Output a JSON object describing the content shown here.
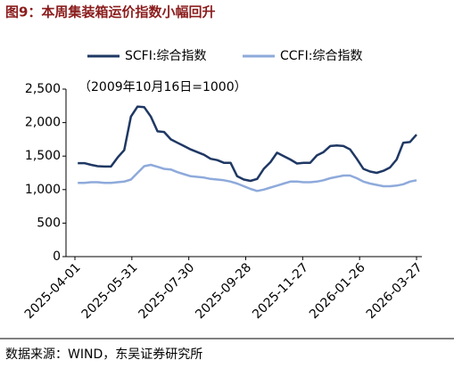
{
  "chart_data": {
    "type": "line",
    "title": "图9：本周集装箱运价指数小幅回升",
    "annotation": "（2009年10月16日=1000）",
    "source": "数据来源：WIND，东吴证券研究所",
    "x": [
      "2025-04-04",
      "2025-04-11",
      "2025-04-18",
      "2025-04-25",
      "2025-05-02",
      "2025-05-09",
      "2025-05-16",
      "2025-05-23",
      "2025-05-30",
      "2025-06-06",
      "2025-06-13",
      "2025-06-20",
      "2025-06-27",
      "2025-07-04",
      "2025-07-11",
      "2025-07-18",
      "2025-07-25",
      "2025-08-01",
      "2025-08-08",
      "2025-08-15",
      "2025-08-22",
      "2025-08-29",
      "2025-09-05",
      "2025-09-12",
      "2025-09-19",
      "2025-09-26",
      "2025-10-03",
      "2025-10-10",
      "2025-10-17",
      "2025-10-24",
      "2025-10-31",
      "2025-11-07",
      "2025-11-14",
      "2025-11-21",
      "2025-11-28",
      "2025-12-05",
      "2025-12-12",
      "2025-12-19",
      "2025-12-26",
      "2026-01-02",
      "2026-01-09",
      "2026-01-16",
      "2026-01-23",
      "2026-01-30",
      "2026-02-06",
      "2026-02-13",
      "2026-02-20",
      "2026-02-27",
      "2026-03-06",
      "2026-03-13",
      "2026-03-20",
      "2026-03-27"
    ],
    "series": [
      {
        "name": "SCFI:综合指数",
        "color": "#1f3864",
        "values": [
          1395,
          1395,
          1370,
          1350,
          1345,
          1345,
          1480,
          1590,
          2090,
          2240,
          2230,
          2090,
          1870,
          1860,
          1750,
          1700,
          1650,
          1600,
          1560,
          1520,
          1460,
          1440,
          1400,
          1400,
          1200,
          1150,
          1130,
          1160,
          1310,
          1410,
          1550,
          1500,
          1450,
          1390,
          1400,
          1400,
          1510,
          1560,
          1650,
          1660,
          1650,
          1600,
          1460,
          1310,
          1270,
          1250,
          1280,
          1330,
          1450,
          1700,
          1710,
          1820
        ]
      },
      {
        "name": "CCFI:综合指数",
        "color": "#8eaadb",
        "values": [
          1100,
          1100,
          1110,
          1110,
          1100,
          1100,
          1110,
          1120,
          1150,
          1250,
          1350,
          1370,
          1340,
          1310,
          1300,
          1260,
          1230,
          1200,
          1190,
          1180,
          1160,
          1150,
          1140,
          1120,
          1090,
          1050,
          1010,
          980,
          1000,
          1030,
          1060,
          1090,
          1120,
          1120,
          1110,
          1110,
          1120,
          1140,
          1170,
          1190,
          1210,
          1210,
          1170,
          1120,
          1090,
          1070,
          1050,
          1050,
          1060,
          1080,
          1120,
          1140
        ]
      }
    ],
    "xlim": [
      "2025-04-01",
      "2026-03-27"
    ],
    "xticks": [
      "2025-04-01",
      "2025-05-31",
      "2025-07-30",
      "2025-09-28",
      "2025-11-27",
      "2026-01-26",
      "2026-03-27"
    ],
    "ylim": [
      0,
      2500
    ],
    "yticks": [
      0,
      500,
      {
        "value": 1000,
        "label": "1,000"
      },
      {
        "value": 1500,
        "label": "1,500"
      },
      {
        "value": 2000,
        "label": "2,000"
      },
      {
        "value": 2500,
        "label": "2,500"
      }
    ],
    "grid": false,
    "legend": "top"
  }
}
